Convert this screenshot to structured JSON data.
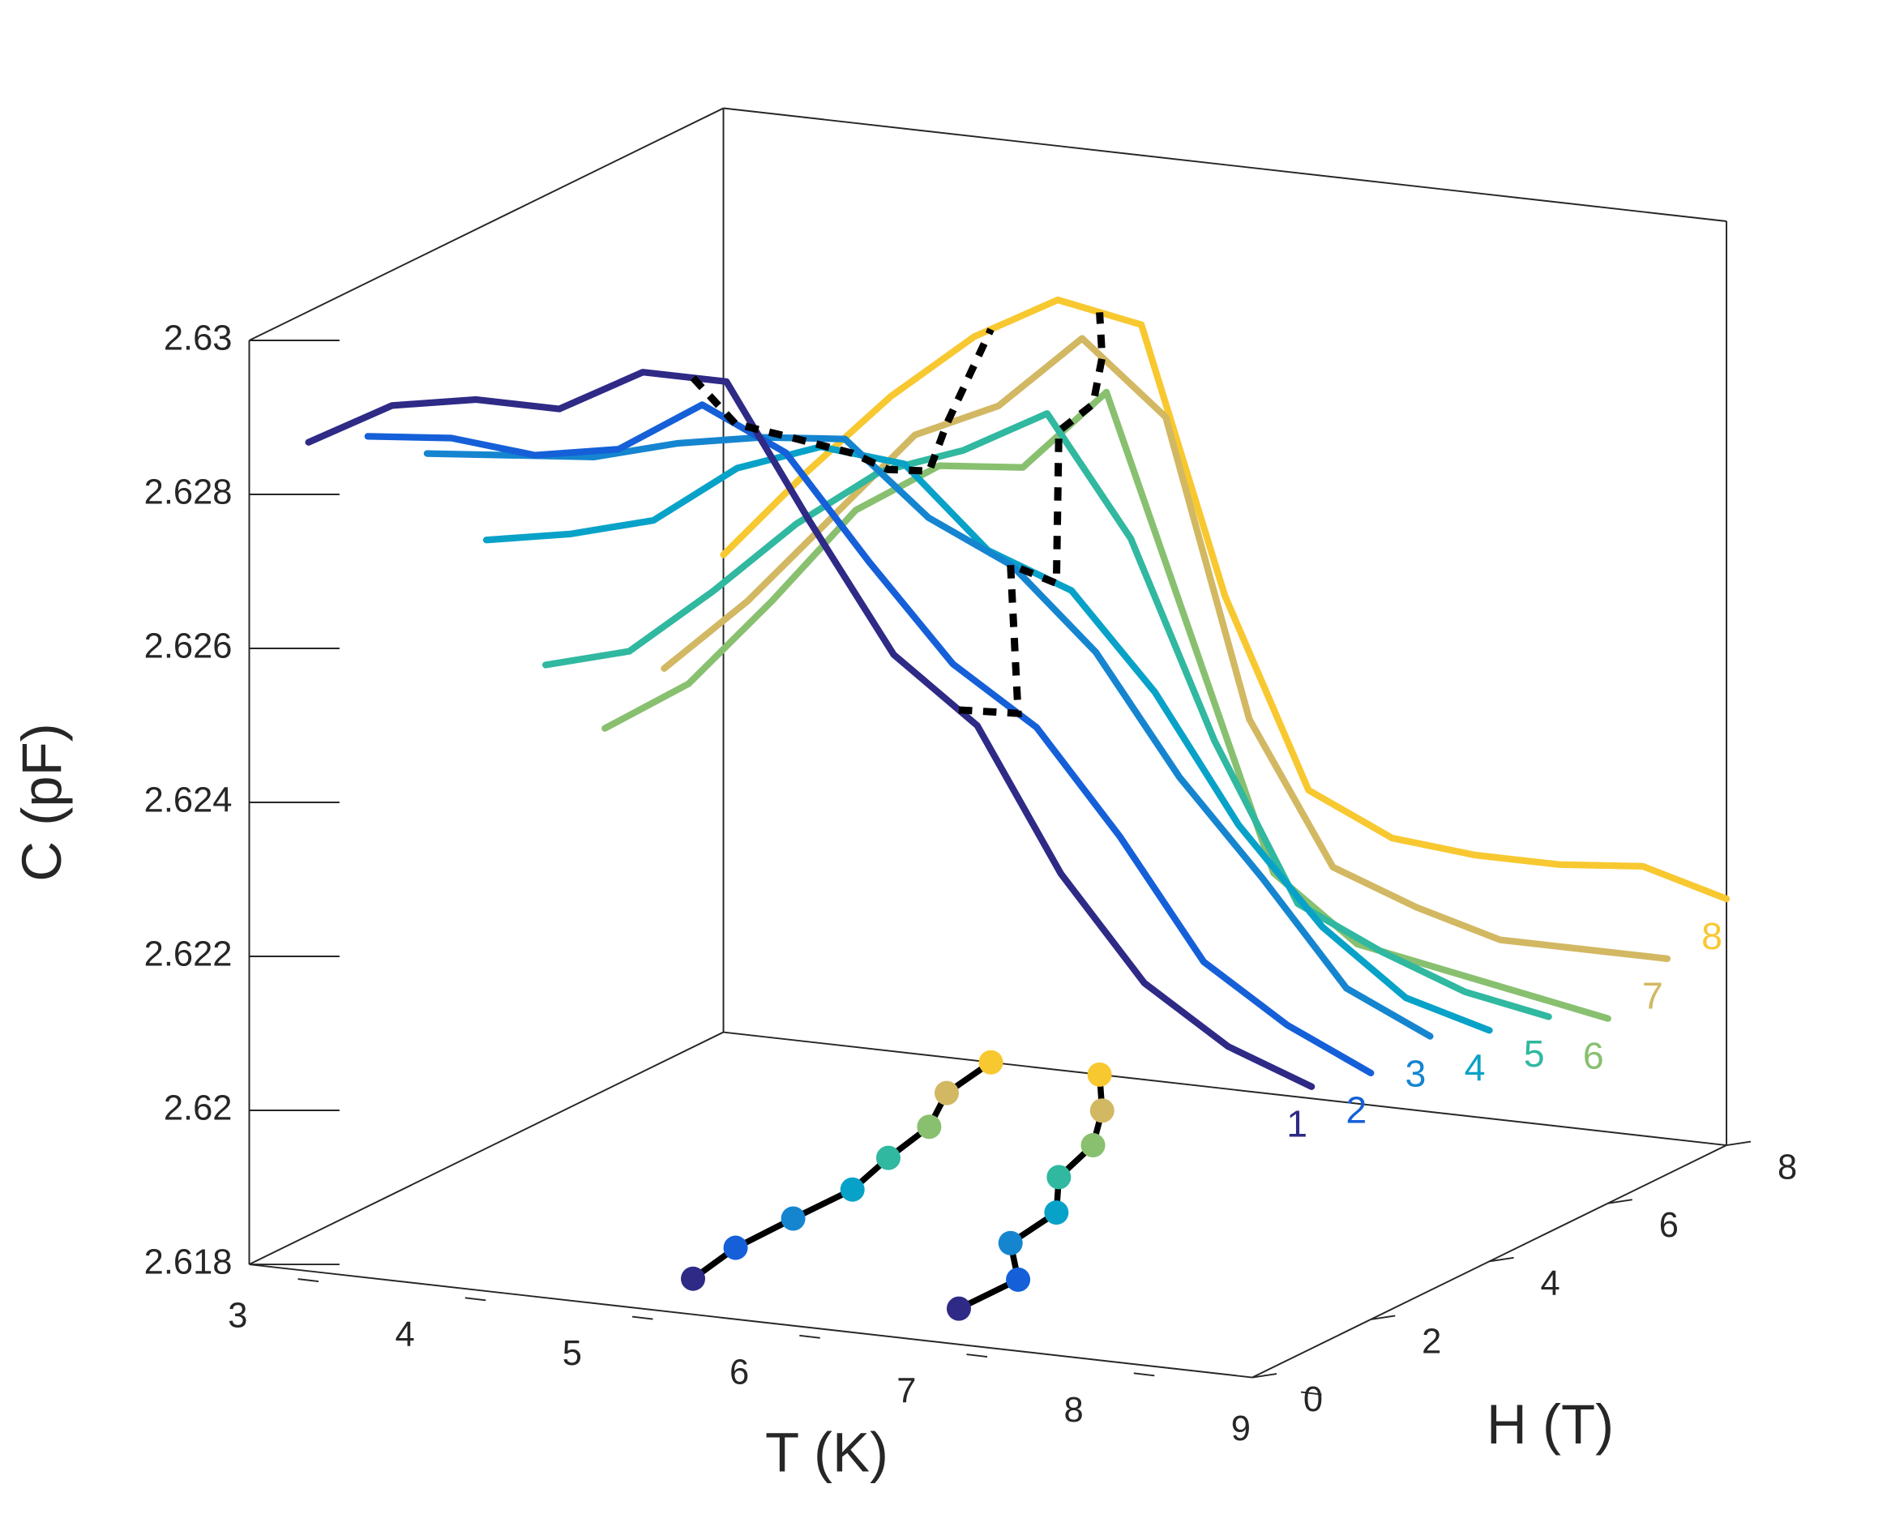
{
  "chart_data": {
    "type": "line3d",
    "xlabel": "T (K)",
    "ylabel": "H (T)",
    "zlabel": "C (pF)",
    "x": [
      3,
      3.5,
      4,
      4.5,
      5,
      5.5,
      6,
      6.5,
      7,
      7.5,
      8,
      8.5,
      9
    ],
    "xlim": [
      3,
      9
    ],
    "ylim": [
      0,
      8
    ],
    "zlim": [
      2.618,
      2.63
    ],
    "xticks": [
      3,
      4,
      5,
      6,
      7,
      8,
      9
    ],
    "yticks": [
      0,
      2,
      4,
      6,
      8
    ],
    "zticks": [
      2.618,
      2.62,
      2.622,
      2.624,
      2.626,
      2.628,
      2.63
    ],
    "series": [
      {
        "name": "1",
        "h": 1,
        "color": "#2e2a86",
        "values": [
          2.6283,
          2.6289,
          2.6291,
          2.6291,
          2.6297,
          2.6297,
          2.628,
          2.6264,
          2.6256,
          2.6238,
          2.6225,
          2.6218,
          2.6214
        ]
      },
      {
        "name": "2",
        "h": 2,
        "color": "#1560d8",
        "values": [
          2.628,
          2.6281,
          2.628,
          2.6282,
          2.6289,
          2.6284,
          2.6271,
          2.6259,
          2.6252,
          2.6239,
          2.6224,
          2.6217,
          2.6212
        ]
      },
      {
        "name": "3",
        "h": 3,
        "color": "#1585d0",
        "values": [
          2.6274,
          2.6275,
          2.6276,
          2.6279,
          2.6281,
          2.6282,
          2.6273,
          2.6268,
          2.6258,
          2.6243,
          2.6231,
          2.6218,
          2.6213
        ]
      },
      {
        "name": "4",
        "h": 4,
        "color": "#08a2c8",
        "values": [
          2.6259,
          2.6261,
          2.6264,
          2.6272,
          2.6276,
          2.6275,
          2.6265,
          2.6261,
          2.6249,
          2.6233,
          2.6221,
          2.6213,
          2.621
        ]
      },
      {
        "name": "5",
        "h": 5,
        "color": "#30b8a0",
        "values": [
          2.6239,
          2.6242,
          2.6251,
          2.6261,
          2.6269,
          2.6273,
          2.6279,
          2.6264,
          2.6239,
          2.6219,
          2.6214,
          2.621,
          2.6208
        ]
      },
      {
        "name": "6",
        "h": 6,
        "color": "#88c070",
        "values": [
          2.6227,
          2.6234,
          2.6246,
          2.6259,
          2.6266,
          2.6267,
          2.6278,
          2.6248,
          2.6218,
          2.621,
          2.6208,
          2.6206,
          2.6204
        ]
      },
      {
        "name": "7",
        "h": 7,
        "color": "#d2b862",
        "values": [
          2.6231,
          2.6241,
          2.6253,
          2.6265,
          2.627,
          2.628,
          2.6271,
          2.6233,
          2.6215,
          2.6211,
          2.6208,
          2.6208,
          2.6208
        ]
      },
      {
        "name": "8",
        "h": 8,
        "color": "#f8c830",
        "values": [
          2.6242,
          2.6254,
          2.6265,
          2.6274,
          2.628,
          2.6278,
          2.6244,
          2.622,
          2.6215,
          2.6214,
          2.6214,
          2.6215,
          2.6212
        ]
      }
    ],
    "projections": [
      [
        5.3,
        5.2,
        5.19,
        5.19,
        5.05,
        4.94,
        4.69,
        4.6
      ],
      [
        6.89,
        6.89,
        6.49,
        6.41,
        6.07,
        5.92,
        5.62,
        5.25
      ]
    ]
  }
}
